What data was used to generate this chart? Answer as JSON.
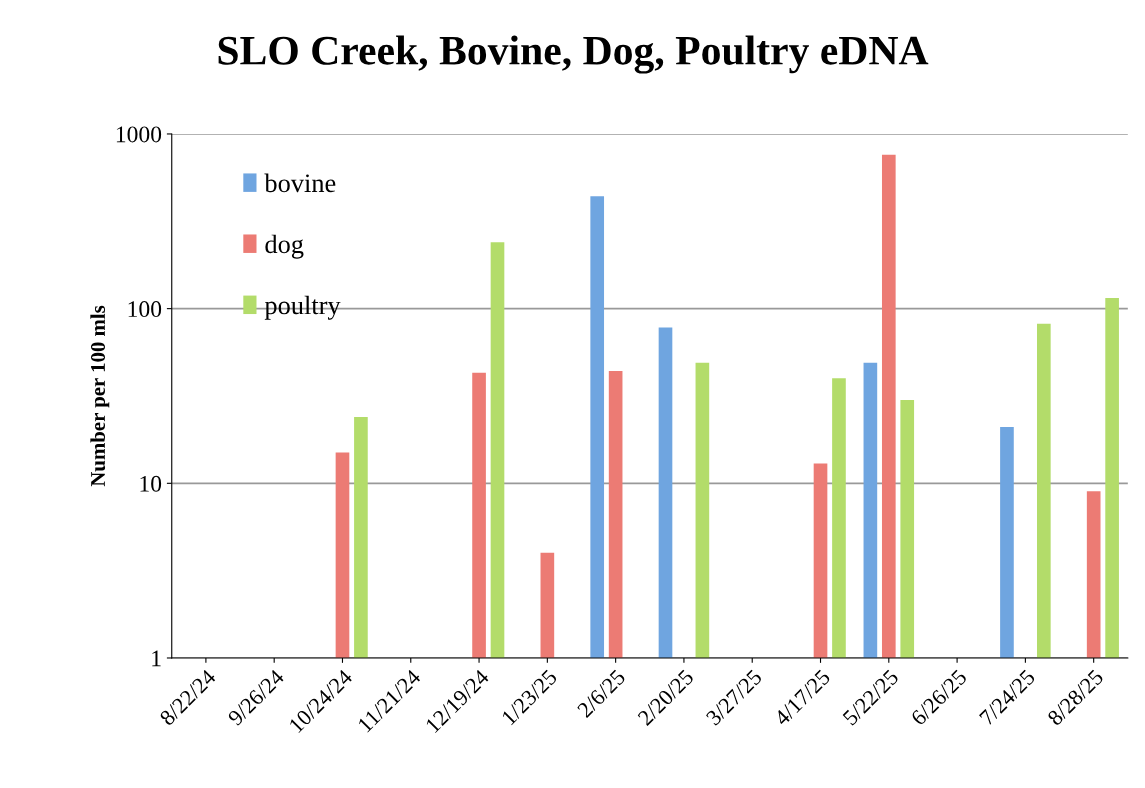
{
  "chart_data": {
    "type": "bar",
    "title": "SLO Creek, Bovine, Dog, Poultry eDNA",
    "ylabel": "Number per 100 mls",
    "categories": [
      "8/22/24",
      "9/26/24",
      "10/24/24",
      "11/21/24",
      "12/19/24",
      "1/23/25",
      "2/6/25",
      "2/20/25",
      "3/27/25",
      "4/17/25",
      "5/22/25",
      "6/26/25",
      "7/24/25",
      "8/28/25"
    ],
    "series": [
      {
        "name": "bovine",
        "color": "#6fa5e0",
        "values": [
          null,
          null,
          null,
          null,
          null,
          null,
          440,
          78,
          null,
          null,
          49,
          null,
          21,
          null
        ]
      },
      {
        "name": "dog",
        "color": "#ec7b74",
        "values": [
          null,
          null,
          15,
          null,
          43,
          4,
          44,
          null,
          null,
          13,
          760,
          null,
          null,
          9
        ]
      },
      {
        "name": "poultry",
        "color": "#b3dc6a",
        "values": [
          null,
          null,
          24,
          null,
          240,
          null,
          null,
          49,
          null,
          40,
          30,
          null,
          82,
          115
        ]
      }
    ],
    "log": "y",
    "ylim": [
      1,
      1000
    ],
    "yticks": [
      1,
      10,
      100,
      1000
    ],
    "grid": "y",
    "legend": "top left"
  }
}
